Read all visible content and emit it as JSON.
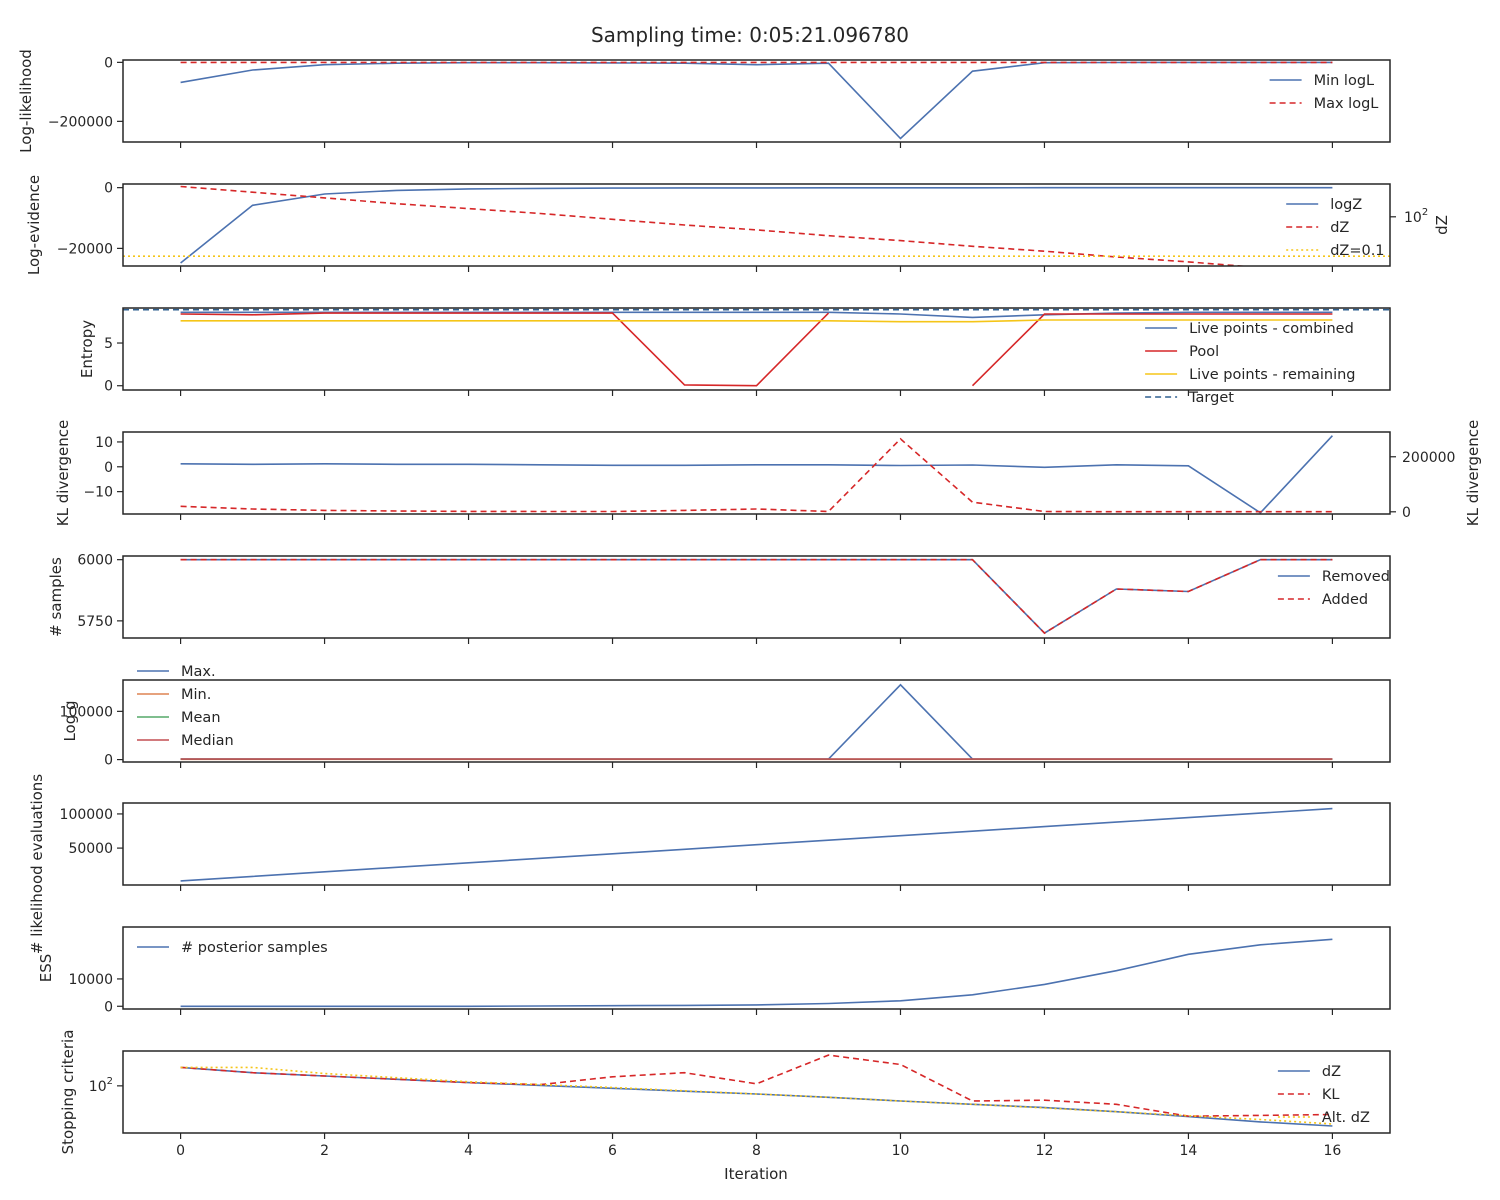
{
  "title": "Sampling time: 0:05:21.096780",
  "x_label": "Iteration",
  "x_ticks": [
    0,
    2,
    4,
    6,
    8,
    10,
    12,
    14,
    16
  ],
  "colors": {
    "blue": "#4c72b0",
    "red": "#d62728",
    "yellow": "#f5c518",
    "orange": "#dd8452",
    "green": "#55a868",
    "crimson": "#c44e52",
    "darkblue": "#2f5f8f"
  },
  "chart_data": [
    {
      "type": "line",
      "ylabel": "Log-likelihood",
      "ylim": [
        -270000,
        8000
      ],
      "yticks": [
        {
          "v": 0,
          "label": "0"
        },
        {
          "v": -200000,
          "label": "−200000"
        }
      ],
      "legend_position": "right",
      "series": [
        {
          "name": "Min logL",
          "color": "blue",
          "dash": "solid",
          "x": [
            0,
            1,
            2,
            3,
            4,
            5,
            6,
            7,
            8,
            9,
            10,
            11,
            12,
            13,
            14,
            15,
            16
          ],
          "y": [
            -68000,
            -26000,
            -8000,
            -3000,
            -1000,
            -1000,
            -2000,
            -3000,
            -8000,
            -3000,
            -258000,
            -30000,
            -1000,
            -500,
            -300,
            -200,
            -100
          ]
        },
        {
          "name": "Max logL",
          "color": "red",
          "dash": "dashed",
          "x": [
            0,
            16
          ],
          "y": [
            0,
            0
          ]
        }
      ]
    },
    {
      "type": "line",
      "ylabel": "Log-evidence",
      "ylabel_right": "dZ",
      "ylim": [
        -25800,
        1200
      ],
      "yticks": [
        {
          "v": 0,
          "label": "0"
        },
        {
          "v": -20000,
          "label": "−20000"
        }
      ],
      "right_ticks": [
        {
          "frac": 0.6,
          "label": "10",
          "sup": "2"
        }
      ],
      "legend_position": "right",
      "series": [
        {
          "name": "logZ",
          "color": "blue",
          "dash": "solid",
          "axis": "left",
          "x": [
            0,
            1,
            2,
            3,
            4,
            5,
            6,
            7,
            8,
            9,
            10,
            11,
            12,
            13,
            14,
            15,
            16
          ],
          "y": [
            -24800,
            -5800,
            -2100,
            -900,
            -400,
            -250,
            -150,
            -100,
            -80,
            -60,
            -50,
            -40,
            -30,
            -20,
            -15,
            -10,
            -5
          ]
        },
        {
          "name": "dZ",
          "color": "red",
          "dash": "dashed",
          "axis": "right",
          "x": [
            0,
            1,
            2,
            3,
            4,
            5,
            6,
            7,
            8,
            9,
            10,
            11,
            12,
            13,
            14,
            15,
            16
          ],
          "y_frac": [
            0.97,
            0.9,
            0.83,
            0.76,
            0.7,
            0.64,
            0.57,
            0.5,
            0.44,
            0.37,
            0.31,
            0.24,
            0.18,
            0.11,
            0.05,
            -0.02,
            -0.06
          ]
        },
        {
          "name": "dZ=0.1",
          "color": "yellow",
          "dash": "dotted",
          "axis": "right",
          "x": [
            -0.8,
            16.8
          ],
          "y_frac": [
            0.12,
            0.12
          ]
        }
      ]
    },
    {
      "type": "line",
      "ylabel": "Entropy",
      "ylim": [
        -0.5,
        9.1
      ],
      "yticks": [
        {
          "v": 0,
          "label": "0"
        },
        {
          "v": 5,
          "label": "5"
        }
      ],
      "legend_position": "right",
      "series": [
        {
          "name": "Live points - combined",
          "color": "blue",
          "dash": "solid",
          "x": [
            0,
            1,
            2,
            3,
            4,
            5,
            6,
            7,
            8,
            9,
            10,
            11,
            12,
            13,
            14,
            15,
            16
          ],
          "y": [
            8.6,
            8.6,
            8.6,
            8.6,
            8.6,
            8.6,
            8.6,
            8.6,
            8.6,
            8.6,
            8.4,
            8.0,
            8.3,
            8.5,
            8.6,
            8.6,
            8.6
          ]
        },
        {
          "name": "Pool",
          "color": "red",
          "dash": "solid",
          "x": [
            0,
            1,
            2,
            3,
            4,
            5,
            6,
            7,
            8,
            9,
            10,
            11,
            12,
            13,
            14,
            15,
            16
          ],
          "y": [
            8.4,
            8.3,
            8.5,
            8.5,
            8.5,
            8.5,
            8.5,
            0.1,
            0.0,
            8.5,
            null,
            0.0,
            8.4,
            8.4,
            8.4,
            8.4,
            8.4
          ]
        },
        {
          "name": "Live points - remaining",
          "color": "yellow",
          "dash": "solid",
          "x": [
            0,
            1,
            2,
            3,
            4,
            5,
            6,
            7,
            8,
            9,
            10,
            11,
            12,
            13,
            14,
            15,
            16
          ],
          "y": [
            7.6,
            7.6,
            7.6,
            7.6,
            7.6,
            7.6,
            7.6,
            7.6,
            7.6,
            7.6,
            7.5,
            7.5,
            7.7,
            7.7,
            7.7,
            7.7,
            7.7
          ]
        },
        {
          "name": "Target",
          "color": "darkblue",
          "dash": "dashed",
          "x": [
            -0.8,
            16.8
          ],
          "y": [
            8.9,
            8.9
          ]
        }
      ]
    },
    {
      "type": "line",
      "ylabel": "KL divergence",
      "ylabel_right": "KL divergence",
      "ylim": [
        -19,
        14
      ],
      "yticks": [
        {
          "v": 10,
          "label": "10"
        },
        {
          "v": 0,
          "label": "0"
        },
        {
          "v": -10,
          "label": "−10"
        }
      ],
      "right_ylim": [
        -8000,
        290000
      ],
      "right_ticks_values": [
        {
          "v": 200000,
          "label": "200000"
        },
        {
          "v": 0,
          "label": "0"
        }
      ],
      "series": [
        {
          "name": "",
          "color": "blue",
          "dash": "solid",
          "axis": "left",
          "x": [
            0,
            1,
            2,
            3,
            4,
            5,
            6,
            7,
            8,
            9,
            10,
            11,
            12,
            13,
            14,
            15,
            16
          ],
          "y": [
            1.2,
            1.0,
            1.2,
            1.0,
            1.0,
            0.8,
            0.6,
            0.6,
            0.8,
            0.8,
            0.5,
            0.7,
            -0.2,
            0.8,
            0.4,
            -18.5,
            12.5
          ]
        },
        {
          "name": "",
          "color": "red",
          "dash": "dashed",
          "axis": "right",
          "x": [
            0,
            1,
            2,
            3,
            4,
            5,
            6,
            7,
            8,
            9,
            10,
            11,
            12,
            13,
            14,
            15,
            16
          ],
          "y": [
            20000,
            10000,
            5000,
            3000,
            1500,
            1000,
            1000,
            5000,
            10000,
            1000,
            265000,
            35000,
            1000,
            500,
            500,
            500,
            500
          ]
        }
      ]
    },
    {
      "type": "line",
      "ylabel": "# samples",
      "ylim": [
        5680,
        6015
      ],
      "yticks": [
        {
          "v": 6000,
          "label": "6000"
        },
        {
          "v": 5750,
          "label": "5750"
        }
      ],
      "legend_position": "right",
      "series": [
        {
          "name": "Removed",
          "color": "blue",
          "dash": "solid",
          "x": [
            0,
            1,
            2,
            3,
            4,
            5,
            6,
            7,
            8,
            9,
            10,
            11,
            12,
            13,
            14,
            15,
            16
          ],
          "y": [
            6000,
            6000,
            6000,
            6000,
            6000,
            6000,
            6000,
            6000,
            6000,
            6000,
            6000,
            6000,
            5700,
            5880,
            5870,
            6000,
            6000
          ]
        },
        {
          "name": "Added",
          "color": "red",
          "dash": "dashed",
          "x": [
            0,
            1,
            2,
            3,
            4,
            5,
            6,
            7,
            8,
            9,
            10,
            11,
            12,
            13,
            14,
            15,
            16
          ],
          "y": [
            6000,
            6000,
            6000,
            6000,
            6000,
            6000,
            6000,
            6000,
            6000,
            6000,
            6000,
            6000,
            5700,
            5880,
            5870,
            6000,
            6000
          ]
        }
      ]
    },
    {
      "type": "line",
      "ylabel": "Log g",
      "ylim": [
        -5000,
        165000
      ],
      "yticks": [
        {
          "v": 100000,
          "label": "100000"
        },
        {
          "v": 0,
          "label": "0"
        }
      ],
      "legend_position": "top-left",
      "series": [
        {
          "name": "Max.",
          "color": "blue",
          "dash": "solid",
          "x": [
            0,
            1,
            2,
            3,
            4,
            5,
            6,
            7,
            8,
            9,
            10,
            11,
            12,
            13,
            14,
            15,
            16
          ],
          "y": [
            1000,
            1000,
            1000,
            1000,
            1000,
            1000,
            1000,
            1000,
            1000,
            1000,
            155000,
            1000,
            1000,
            1000,
            1000,
            1000,
            1000
          ]
        },
        {
          "name": "Min.",
          "color": "orange",
          "dash": "solid",
          "x": [
            0,
            16
          ],
          "y": [
            500,
            500
          ]
        },
        {
          "name": "Mean",
          "color": "green",
          "dash": "solid",
          "x": [
            0,
            16
          ],
          "y": [
            800,
            800
          ]
        },
        {
          "name": "Median",
          "color": "crimson",
          "dash": "solid",
          "x": [
            0,
            16
          ],
          "y": [
            1000,
            1000
          ]
        }
      ]
    },
    {
      "type": "line",
      "ylabel": "# likelihood evaluations",
      "ylim": [
        -4000,
        116000
      ],
      "yticks": [
        {
          "v": 100000,
          "label": "100000"
        },
        {
          "v": 50000,
          "label": "50000"
        }
      ],
      "series": [
        {
          "name": "",
          "color": "blue",
          "dash": "solid",
          "x": [
            0,
            1,
            2,
            3,
            4,
            5,
            6,
            7,
            8,
            9,
            10,
            11,
            12,
            13,
            14,
            15,
            16
          ],
          "y": [
            2000,
            8600,
            15300,
            21900,
            28500,
            35100,
            41700,
            48300,
            55000,
            61600,
            68200,
            74800,
            81400,
            88000,
            94600,
            101200,
            107800
          ]
        }
      ]
    },
    {
      "type": "line",
      "ylabel": "ESS",
      "ylim": [
        -1000,
        29000
      ],
      "yticks": [
        {
          "v": 10000,
          "label": "10000"
        },
        {
          "v": 0,
          "label": "0"
        }
      ],
      "legend_position": "top-left",
      "series": [
        {
          "name": "# posterior samples",
          "color": "blue",
          "dash": "solid",
          "x": [
            0,
            1,
            2,
            3,
            4,
            5,
            6,
            7,
            8,
            9,
            10,
            11,
            12,
            13,
            14,
            15,
            16
          ],
          "y": [
            0,
            0,
            0,
            0,
            0,
            100,
            200,
            300,
            500,
            1000,
            2000,
            4200,
            8000,
            13000,
            19000,
            22500,
            24500
          ]
        }
      ]
    },
    {
      "type": "line",
      "ylabel": "Stopping criteria",
      "scale": "log",
      "ylim_exp": [
        0.85,
        2.85
      ],
      "yticks_exp": [
        {
          "e": 2,
          "label": "10",
          "sup": "2"
        }
      ],
      "legend_position": "right",
      "series": [
        {
          "name": "dZ",
          "color": "blue",
          "dash": "solid",
          "x": [
            0,
            1,
            2,
            3,
            4,
            5,
            6,
            7,
            8,
            9,
            10,
            11,
            12,
            13,
            14,
            15,
            16
          ],
          "e": [
            2.45,
            2.32,
            2.24,
            2.16,
            2.08,
            2.01,
            1.94,
            1.87,
            1.8,
            1.72,
            1.63,
            1.55,
            1.47,
            1.37,
            1.25,
            1.12,
            1.02
          ]
        },
        {
          "name": "KL",
          "color": "red",
          "dash": "dashed",
          "x": [
            0,
            1,
            2,
            3,
            4,
            5,
            6,
            7,
            8,
            9,
            10,
            11,
            12,
            13,
            14,
            15,
            16
          ],
          "e": [
            2.45,
            2.32,
            2.24,
            2.16,
            2.08,
            2.03,
            2.22,
            2.32,
            2.05,
            2.75,
            2.52,
            1.63,
            1.65,
            1.55,
            1.26,
            1.28,
            1.3
          ]
        },
        {
          "name": "Alt. dZ",
          "color": "yellow",
          "dash": "dotted",
          "x": [
            0,
            1,
            2,
            3,
            4,
            5,
            6,
            7,
            8,
            9,
            10,
            11,
            12,
            13,
            14,
            15,
            16
          ],
          "e": [
            2.45,
            2.45,
            2.3,
            2.2,
            2.1,
            2.03,
            1.96,
            1.88,
            1.8,
            1.72,
            1.63,
            1.55,
            1.46,
            1.37,
            1.27,
            1.18,
            1.07
          ]
        }
      ]
    }
  ]
}
